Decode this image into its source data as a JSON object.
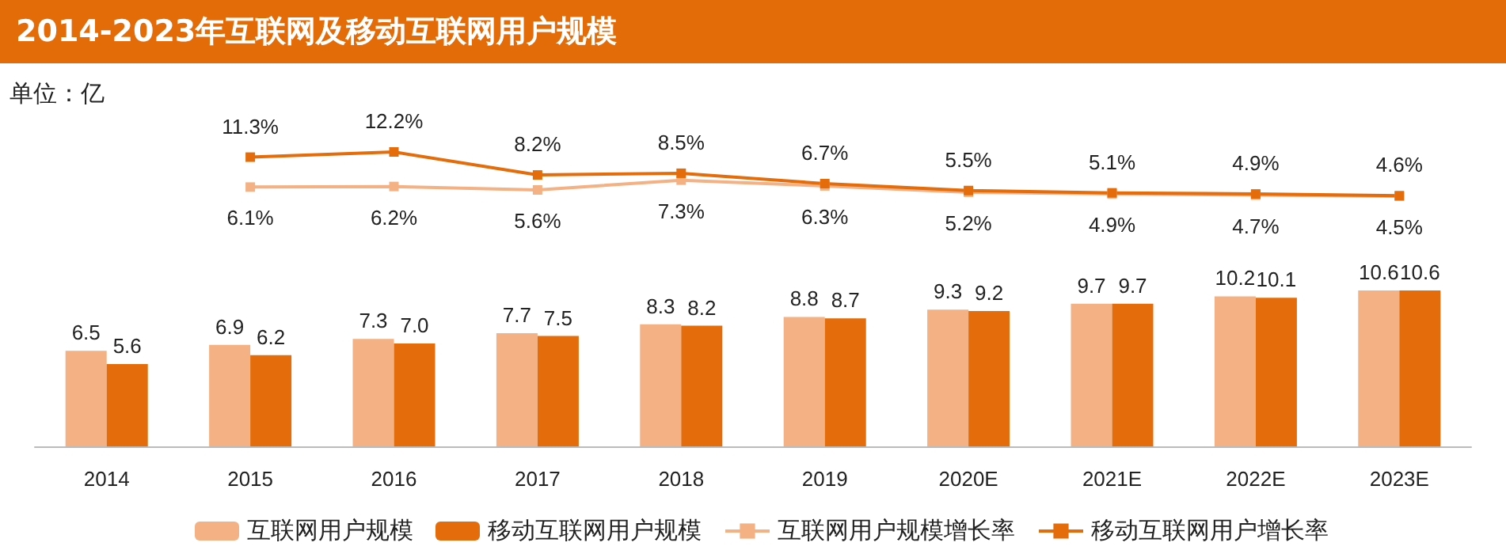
{
  "chart_data": [
    {
      "type": "bar",
      "annotations": [
        "单位：亿"
      ],
      "categories": [
        "2014",
        "2015",
        "2016",
        "2017",
        "2018",
        "2019",
        "2020E",
        "2021E",
        "2022E",
        "2023E"
      ],
      "series": [
        {
          "name": "互联网用户规模",
          "color": "#f4b183",
          "values": [
            6.5,
            6.9,
            7.3,
            7.7,
            8.3,
            8.8,
            9.3,
            9.7,
            10.2,
            10.6
          ],
          "value_labels": [
            "6.5",
            "6.9",
            "7.3",
            "7.7",
            "8.3",
            "8.8",
            "9.3",
            "9.7",
            "10.2",
            "10.6"
          ]
        },
        {
          "name": "移动互联网用户规模",
          "color": "#e46c0a",
          "values": [
            5.6,
            6.2,
            7.0,
            7.5,
            8.2,
            8.7,
            9.2,
            9.7,
            10.1,
            10.6
          ],
          "value_labels": [
            "5.6",
            "6.2",
            "7.0",
            "7.5",
            "8.2",
            "8.7",
            "9.2",
            "9.7",
            "10.1",
            "10.6"
          ]
        }
      ],
      "tick_labels": "x",
      "grid": false,
      "legend": "bottom"
    },
    {
      "type": "line",
      "title": "2014-2023年互联网及移动互联网用户规模",
      "categories": [
        null,
        null,
        null,
        null,
        null,
        null,
        null,
        null,
        null,
        null
      ],
      "series": [
        {
          "name": "互联网用户规模增长率",
          "color": "#f4b183",
          "values": [
            null,
            6.1,
            6.2,
            5.6,
            7.3,
            6.3,
            5.2,
            4.9,
            4.7,
            4.5
          ],
          "value_labels": [
            null,
            "6.1%",
            "6.2%",
            "5.6%",
            "7.3%",
            "6.3%",
            "5.2%",
            "4.9%",
            "4.7%",
            "4.5%"
          ]
        },
        {
          "name": "移动互联网用户增长率",
          "color": "#e46c0a",
          "values": [
            null,
            11.3,
            12.2,
            8.2,
            8.5,
            6.7,
            5.5,
            5.1,
            4.9,
            4.6
          ],
          "value_labels": [
            null,
            "11.3%",
            "12.2%",
            "8.2%",
            "8.5%",
            "6.7%",
            "5.5%",
            "5.1%",
            "4.9%",
            "4.6%"
          ]
        }
      ],
      "tick_labels": false,
      "grid": false,
      "legend": "bottom",
      "marker": "square",
      "line_style": "solid"
    }
  ]
}
